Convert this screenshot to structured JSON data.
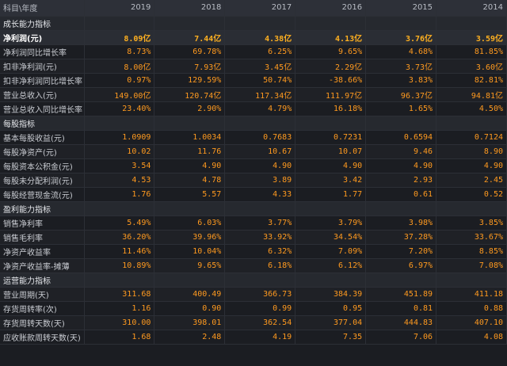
{
  "header": {
    "label": "科目\\年度",
    "years": [
      "2019",
      "2018",
      "2017",
      "2016",
      "2015",
      "2014"
    ]
  },
  "sections": [
    {
      "title": "成长能力指标",
      "rows": [
        {
          "label": "净利润(元)",
          "values": [
            "8.09亿",
            "7.44亿",
            "4.38亿",
            "4.13亿",
            "3.76亿",
            "3.59亿"
          ],
          "highlight": true
        },
        {
          "label": "净利润同比增长率",
          "values": [
            "8.73%",
            "69.78%",
            "6.25%",
            "9.65%",
            "4.68%",
            "81.85%"
          ]
        },
        {
          "label": "扣非净利润(元)",
          "values": [
            "8.00亿",
            "7.93亿",
            "3.45亿",
            "2.29亿",
            "3.73亿",
            "3.60亿"
          ]
        },
        {
          "label": "扣非净利润同比增长率",
          "values": [
            "0.97%",
            "129.59%",
            "50.74%",
            "-38.66%",
            "3.83%",
            "82.81%"
          ]
        },
        {
          "label": "营业总收入(元)",
          "values": [
            "149.00亿",
            "120.74亿",
            "117.34亿",
            "111.97亿",
            "96.37亿",
            "94.81亿"
          ]
        },
        {
          "label": "营业总收入同比增长率",
          "values": [
            "23.40%",
            "2.90%",
            "4.79%",
            "16.18%",
            "1.65%",
            "4.50%"
          ]
        }
      ]
    },
    {
      "title": "每股指标",
      "rows": [
        {
          "label": "基本每股收益(元)",
          "values": [
            "1.0909",
            "1.0034",
            "0.7683",
            "0.7231",
            "0.6594",
            "0.7124"
          ]
        },
        {
          "label": "每股净资产(元)",
          "values": [
            "10.02",
            "11.76",
            "10.67",
            "10.07",
            "9.46",
            "8.90"
          ]
        },
        {
          "label": "每股资本公积金(元)",
          "values": [
            "3.54",
            "4.90",
            "4.90",
            "4.90",
            "4.90",
            "4.90"
          ]
        },
        {
          "label": "每股未分配利润(元)",
          "values": [
            "4.53",
            "4.78",
            "3.89",
            "3.42",
            "2.93",
            "2.45"
          ]
        },
        {
          "label": "每股经营现金流(元)",
          "values": [
            "1.76",
            "5.57",
            "4.33",
            "1.77",
            "0.61",
            "0.52"
          ]
        }
      ]
    },
    {
      "title": "盈利能力指标",
      "rows": [
        {
          "label": "销售净利率",
          "values": [
            "5.49%",
            "6.03%",
            "3.77%",
            "3.79%",
            "3.98%",
            "3.85%"
          ]
        },
        {
          "label": "销售毛利率",
          "values": [
            "36.20%",
            "39.96%",
            "33.92%",
            "34.54%",
            "37.28%",
            "33.67%"
          ]
        },
        {
          "label": "净资产收益率",
          "values": [
            "11.46%",
            "10.04%",
            "6.32%",
            "7.09%",
            "7.20%",
            "8.85%"
          ]
        },
        {
          "label": "净资产收益率-摊薄",
          "values": [
            "10.89%",
            "9.65%",
            "6.18%",
            "6.12%",
            "6.97%",
            "7.08%"
          ]
        }
      ]
    },
    {
      "title": "运营能力指标",
      "rows": [
        {
          "label": "营业周期(天)",
          "values": [
            "311.68",
            "400.49",
            "366.73",
            "384.39",
            "451.89",
            "411.18"
          ]
        },
        {
          "label": "存货周转率(次)",
          "values": [
            "1.16",
            "0.90",
            "0.99",
            "0.95",
            "0.81",
            "0.88"
          ]
        },
        {
          "label": "存货周转天数(天)",
          "values": [
            "310.00",
            "398.01",
            "362.54",
            "377.04",
            "444.83",
            "407.10"
          ]
        },
        {
          "label": "应收账款周转天数(天)",
          "values": [
            "1.68",
            "2.48",
            "4.19",
            "7.35",
            "7.06",
            "4.08"
          ]
        }
      ]
    }
  ]
}
